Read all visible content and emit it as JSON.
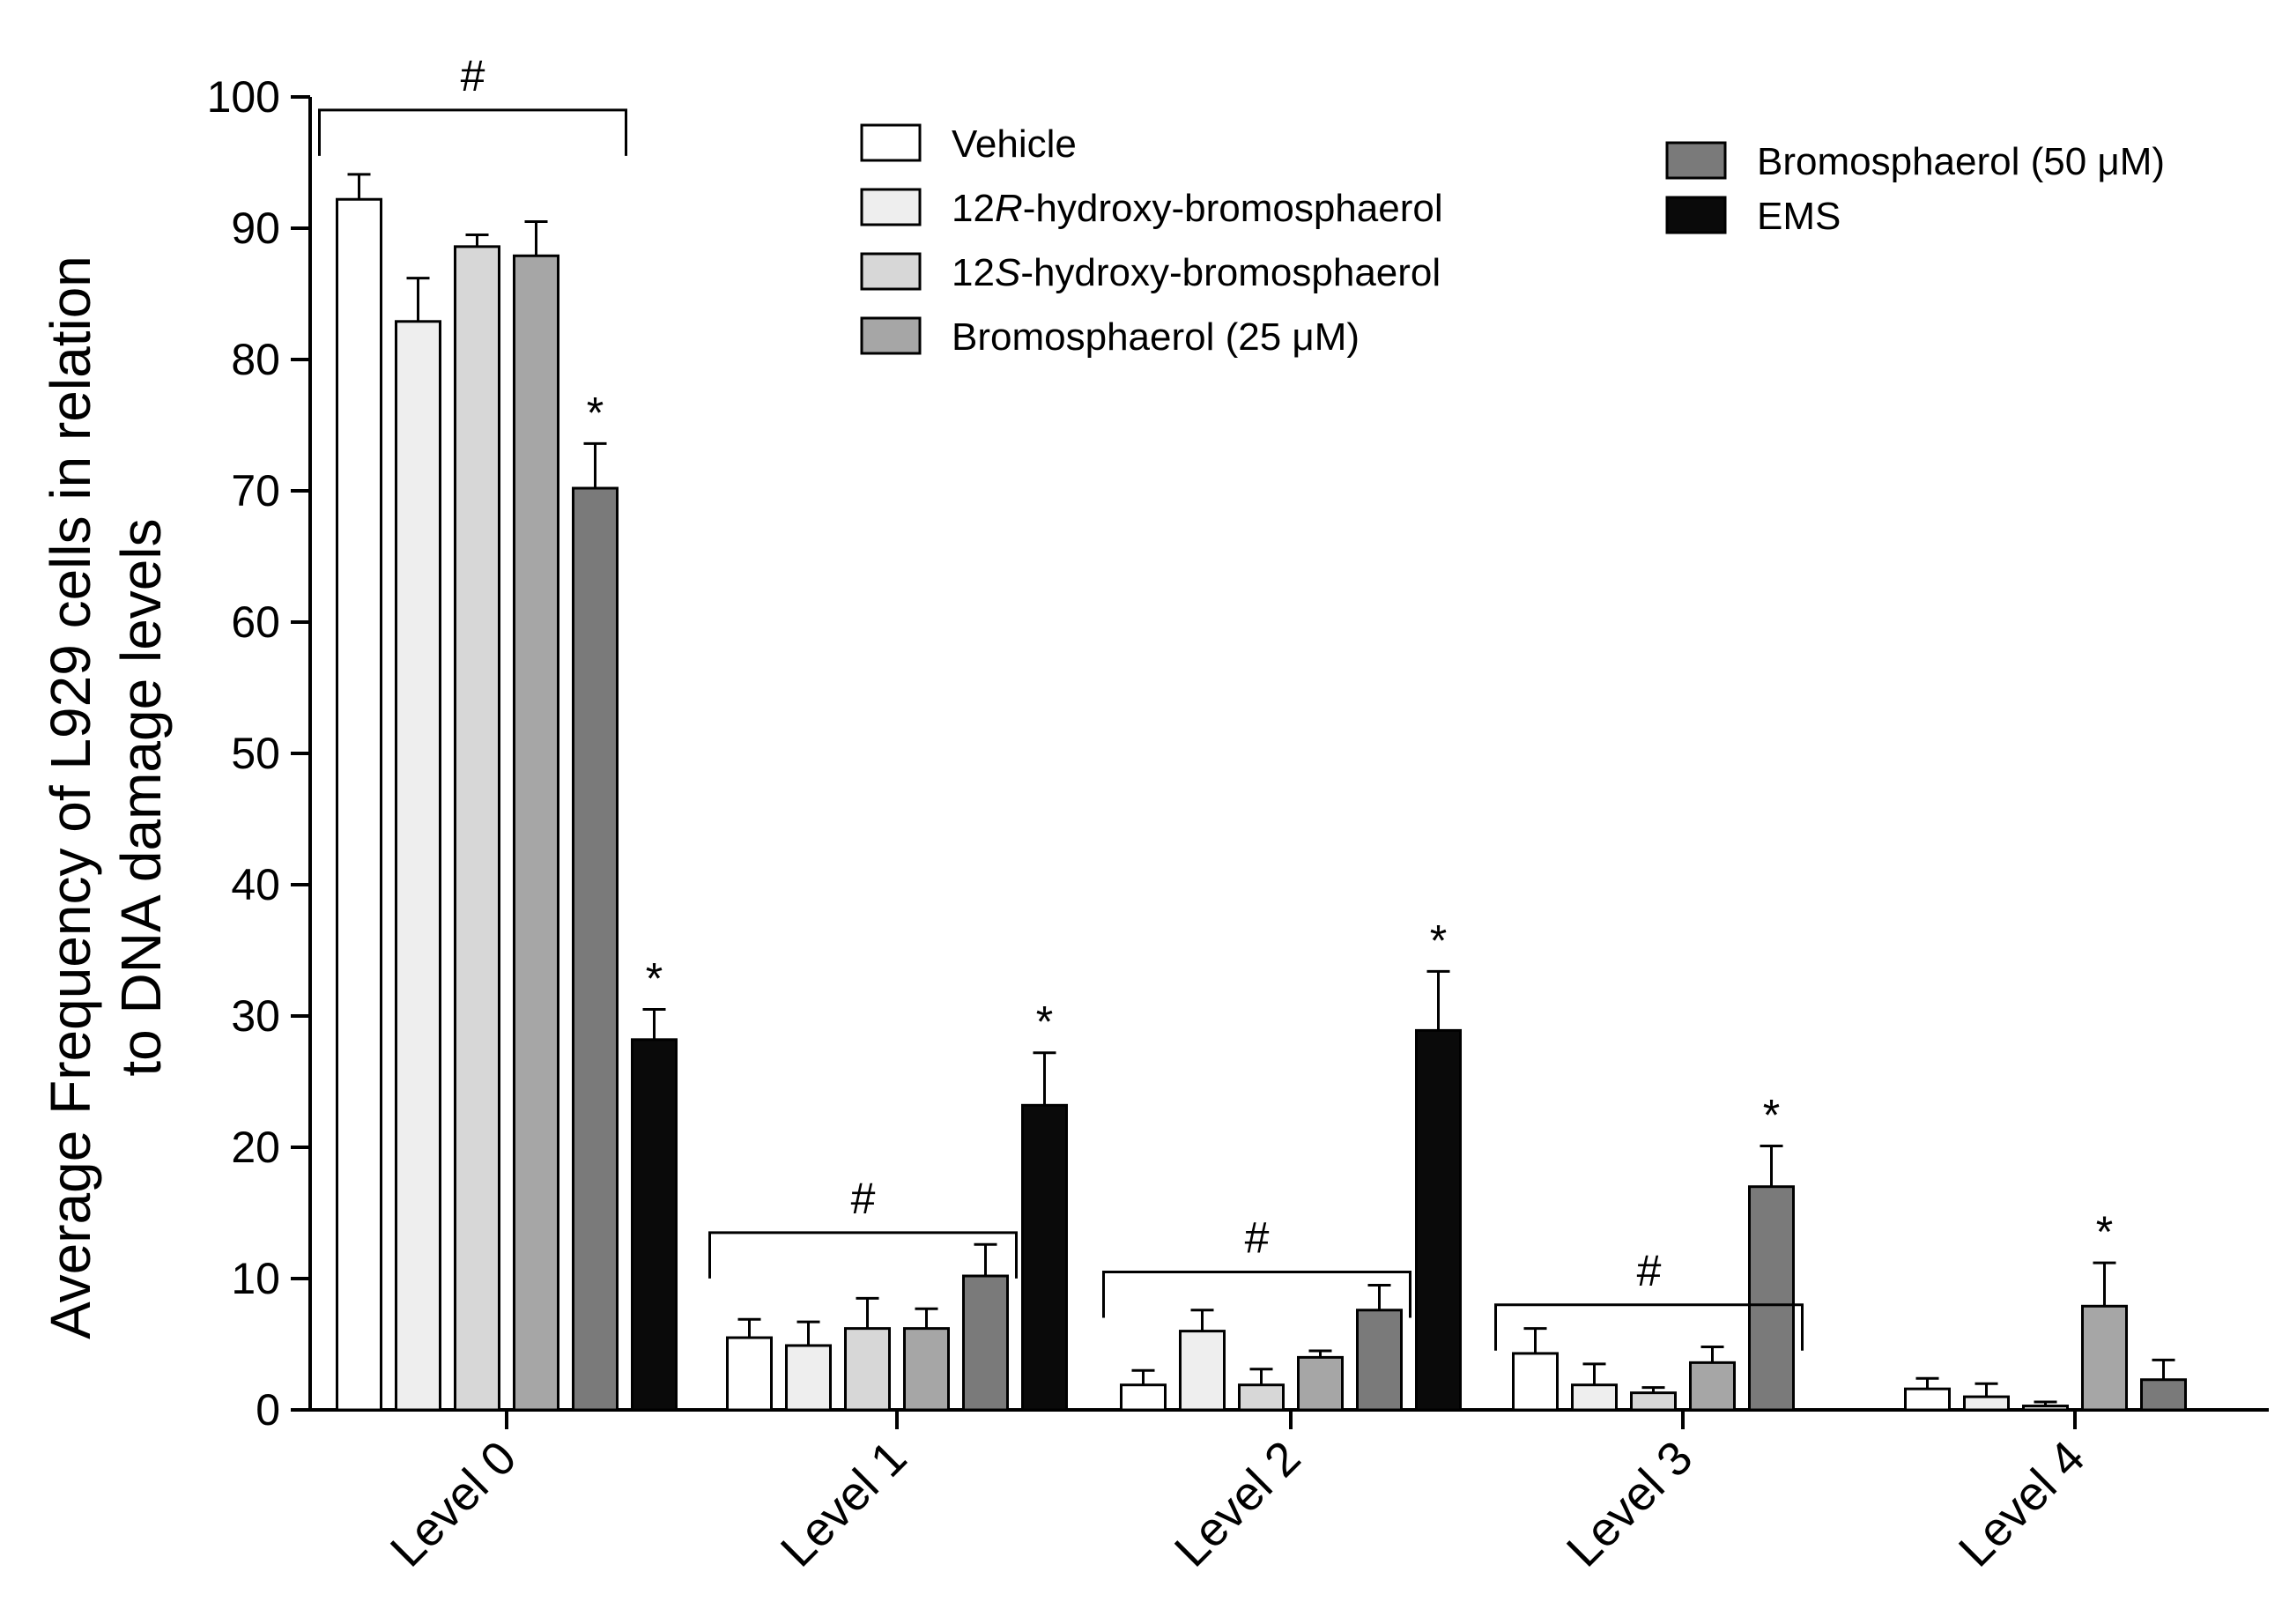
{
  "chart_data": {
    "type": "bar",
    "title": "",
    "xlabel": "",
    "ylabel": [
      "Average Frequency of L929 cells in relation",
      "to DNA damage levels"
    ],
    "ylim": [
      0,
      100
    ],
    "yticks": [
      0,
      10,
      20,
      30,
      40,
      50,
      60,
      70,
      80,
      90,
      100
    ],
    "categories": [
      "Level 0",
      "Level 1",
      "Level 2",
      "Level 3",
      "Level 4"
    ],
    "series": [
      {
        "name": "Vehicle",
        "label_parts": [
          {
            "text": "Vehicle",
            "italic": false
          }
        ],
        "color": "#ffffff",
        "values": [
          92.2,
          5.5,
          1.9,
          4.3,
          1.6
        ],
        "errors": [
          1.9,
          1.4,
          1.1,
          1.9,
          0.8
        ]
      },
      {
        "name": "12R-hydroxy-bromosphaerol",
        "label_parts": [
          {
            "text": "12",
            "italic": false
          },
          {
            "text": "R",
            "italic": true
          },
          {
            "text": "-hydroxy-bromosphaerol",
            "italic": false
          }
        ],
        "color": "#eeeeee",
        "values": [
          82.9,
          4.9,
          6.0,
          1.9,
          1.0
        ],
        "errors": [
          3.3,
          1.8,
          1.6,
          1.6,
          1.0
        ]
      },
      {
        "name": "12S-hydroxy-bromosphaerol",
        "label_parts": [
          {
            "text": "12",
            "italic": false
          },
          {
            "text": "S",
            "italic": true
          },
          {
            "text": "-hydroxy-bromosphaerol",
            "italic": false
          }
        ],
        "color": "#d7d7d7",
        "values": [
          88.6,
          6.2,
          1.9,
          1.3,
          0.3
        ],
        "errors": [
          0.9,
          2.3,
          1.2,
          0.4,
          0.3
        ]
      },
      {
        "name": "Bromosphaerol (25 μM)",
        "label_parts": [
          {
            "text": "Bromosphaerol (25 μM)",
            "italic": false
          }
        ],
        "color": "#a6a6a6",
        "values": [
          87.9,
          6.2,
          4.0,
          3.6,
          7.9
        ],
        "errors": [
          2.6,
          1.5,
          0.5,
          1.2,
          3.3
        ]
      },
      {
        "name": "Bromosphaerol (50 μM)",
        "label_parts": [
          {
            "text": "Bromosphaerol (50 μM)",
            "italic": false
          }
        ],
        "color": "#7a7a7a",
        "values": [
          70.2,
          10.2,
          7.6,
          17.0,
          2.3
        ],
        "errors": [
          3.4,
          2.4,
          1.9,
          3.1,
          1.5
        ]
      },
      {
        "name": "EMS",
        "label_parts": [
          {
            "text": "EMS",
            "italic": false
          }
        ],
        "color": "#0a0a0a",
        "values": [
          28.2,
          23.2,
          28.9,
          0,
          0
        ],
        "errors": [
          2.3,
          4.0,
          4.5,
          0,
          0
        ]
      }
    ],
    "legend": [
      {
        "series": 0,
        "placement": "top-center"
      },
      {
        "series": 1,
        "placement": "top-center"
      },
      {
        "series": 2,
        "placement": "top-center"
      },
      {
        "series": 3,
        "placement": "top-center"
      },
      {
        "series": 4,
        "placement": "top-right"
      },
      {
        "series": 5,
        "placement": "top-right"
      }
    ],
    "asterisks": [
      {
        "category": 0,
        "series": 4,
        "text": "*"
      },
      {
        "category": 0,
        "series": 5,
        "text": "*"
      },
      {
        "category": 1,
        "series": 5,
        "text": "*"
      },
      {
        "category": 2,
        "series": 5,
        "text": "*"
      },
      {
        "category": 3,
        "series": 4,
        "text": "*"
      },
      {
        "category": 4,
        "series": 3,
        "text": "*"
      }
    ],
    "brackets": [
      {
        "category": 0,
        "from_series": 0,
        "to_series": 4,
        "level": 99,
        "text": "#"
      },
      {
        "category": 1,
        "from_series": 0,
        "to_series": 4,
        "level": 13.5,
        "text": "#"
      },
      {
        "category": 2,
        "from_series": 0,
        "to_series": 4,
        "level": 10.5,
        "text": "#"
      },
      {
        "category": 3,
        "from_series": 0,
        "to_series": 4,
        "level": 8,
        "text": "#"
      }
    ]
  }
}
